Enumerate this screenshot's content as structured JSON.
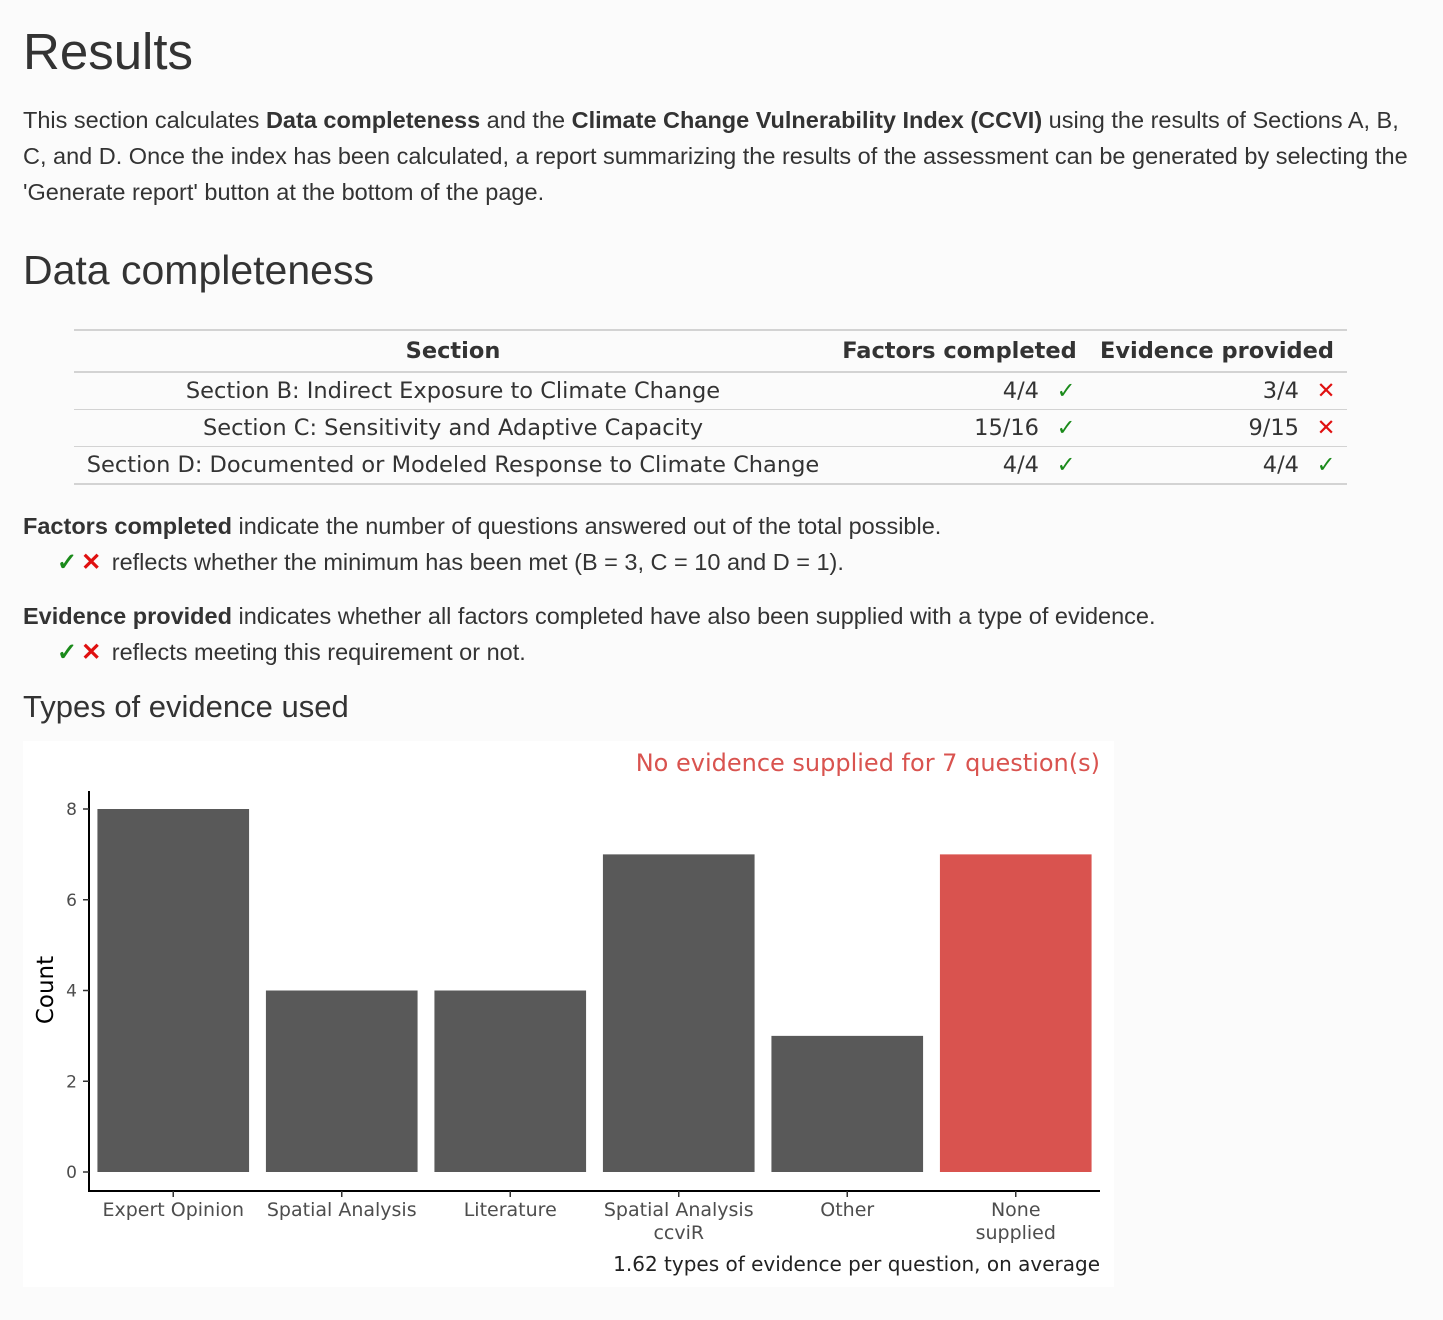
{
  "page": {
    "title": "Results",
    "intro": {
      "t1": "This section calculates ",
      "b1": "Data completeness",
      "t2": " and the ",
      "b2": "Climate Change Vulnerability Index (CCVI)",
      "t3": " using the results of Sections A, B, C, and D. Once the index has been calculated, a report summarizing the results of the assessment can be generated by selecting the 'Generate report' button at the bottom of the page."
    }
  },
  "completeness": {
    "heading": "Data completeness",
    "columns": [
      "Section",
      "Factors completed",
      "Evidence provided"
    ],
    "rows": [
      {
        "section": "Section B: Indirect Exposure to Climate Change",
        "factors": "4/4",
        "factors_ok": true,
        "evidence": "3/4",
        "evidence_ok": false
      },
      {
        "section": "Section C: Sensitivity and Adaptive Capacity",
        "factors": "15/16",
        "factors_ok": true,
        "evidence": "9/15",
        "evidence_ok": false
      },
      {
        "section": "Section D: Documented or Modeled Response to Climate Change",
        "factors": "4/4",
        "factors_ok": true,
        "evidence": "4/4",
        "evidence_ok": true
      }
    ],
    "check_glyph": "✓",
    "cross_glyph": "✕",
    "note1": {
      "bold": "Factors completed",
      "text": " indicate the number of questions answered out of the total possible.",
      "sub": "reflects whether the minimum has been met (B = 3, C = 10 and D = 1)."
    },
    "note2": {
      "bold": "Evidence provided",
      "text": " indicates whether all factors completed have also been supplied with a type of evidence.",
      "sub": "reflects meeting this requirement or not."
    }
  },
  "evidence": {
    "heading": "Types of evidence used"
  },
  "colors": {
    "bar": "#595959",
    "bar_highlight": "#d9534f",
    "check": "#1a8a1a",
    "cross": "#e01010"
  },
  "chart_data": {
    "type": "bar",
    "title": "No evidence supplied for 7 question(s)",
    "caption": "1.62 types of evidence per question, on average",
    "xlabel": "",
    "ylabel": "Count",
    "categories": [
      {
        "line1": "Expert Opinion",
        "line2": ""
      },
      {
        "line1": "Spatial Analysis",
        "line2": ""
      },
      {
        "line1": "Literature",
        "line2": ""
      },
      {
        "line1": "Spatial Analysis",
        "line2": "ccviR"
      },
      {
        "line1": "Other",
        "line2": ""
      },
      {
        "line1": "None",
        "line2": "supplied"
      }
    ],
    "values": [
      8,
      4,
      4,
      7,
      3,
      7
    ],
    "highlight": [
      false,
      false,
      false,
      false,
      false,
      true
    ],
    "yticks": [
      0,
      2,
      4,
      6,
      8
    ],
    "ylim": [
      0,
      8.4
    ],
    "grid": false,
    "legend": "none"
  }
}
